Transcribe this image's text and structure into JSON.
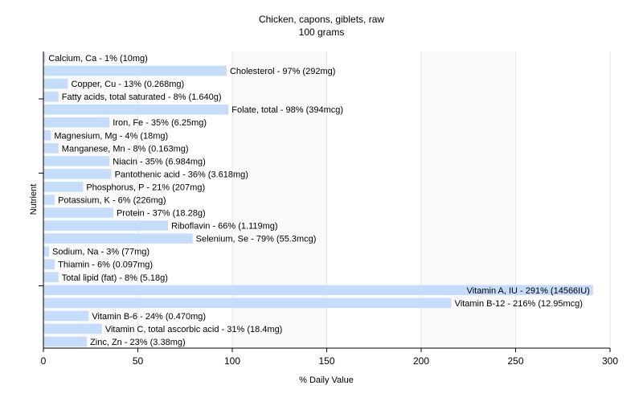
{
  "chart_data": {
    "type": "bar",
    "orientation": "horizontal",
    "title": "Chicken, capons, giblets, raw",
    "subtitle": "100 grams",
    "xlabel": "% Daily Value",
    "ylabel": "Nutrient",
    "xlim": [
      0,
      300
    ],
    "xticks": [
      0,
      50,
      100,
      150,
      200,
      250,
      300
    ],
    "grid": "vertical",
    "bar_color": "#c5dcfa",
    "bars": [
      {
        "name": "Calcium, Ca",
        "value": 1,
        "label": "Calcium, Ca - 1% (10mg)"
      },
      {
        "name": "Cholesterol",
        "value": 97,
        "label": "Cholesterol - 97% (292mg)"
      },
      {
        "name": "Copper, Cu",
        "value": 13,
        "label": "Copper, Cu - 13% (0.268mg)"
      },
      {
        "name": "Fatty acids, total saturated",
        "value": 8,
        "label": "Fatty acids, total saturated - 8% (1.640g)"
      },
      {
        "name": "Folate, total",
        "value": 98,
        "label": "Folate, total - 98% (394mcg)"
      },
      {
        "name": "Iron, Fe",
        "value": 35,
        "label": "Iron, Fe - 35% (6.25mg)"
      },
      {
        "name": "Magnesium, Mg",
        "value": 4,
        "label": "Magnesium, Mg - 4% (18mg)"
      },
      {
        "name": "Manganese, Mn",
        "value": 8,
        "label": "Manganese, Mn - 8% (0.163mg)"
      },
      {
        "name": "Niacin",
        "value": 35,
        "label": "Niacin - 35% (6.984mg)"
      },
      {
        "name": "Pantothenic acid",
        "value": 36,
        "label": "Pantothenic acid - 36% (3.618mg)"
      },
      {
        "name": "Phosphorus, P",
        "value": 21,
        "label": "Phosphorus, P - 21% (207mg)"
      },
      {
        "name": "Potassium, K",
        "value": 6,
        "label": "Potassium, K - 6% (226mg)"
      },
      {
        "name": "Protein",
        "value": 37,
        "label": "Protein - 37% (18.28g)"
      },
      {
        "name": "Riboflavin",
        "value": 66,
        "label": "Riboflavin - 66% (1.119mg)"
      },
      {
        "name": "Selenium, Se",
        "value": 79,
        "label": "Selenium, Se - 79% (55.3mcg)"
      },
      {
        "name": "Sodium, Na",
        "value": 3,
        "label": "Sodium, Na - 3% (77mg)"
      },
      {
        "name": "Thiamin",
        "value": 6,
        "label": "Thiamin - 6% (0.097mg)"
      },
      {
        "name": "Total lipid (fat)",
        "value": 8,
        "label": "Total lipid (fat) - 8% (5.18g)"
      },
      {
        "name": "Vitamin A, IU",
        "value": 291,
        "label": "Vitamin A, IU - 291% (14566IU)"
      },
      {
        "name": "Vitamin B-12",
        "value": 216,
        "label": "Vitamin B-12 - 216% (12.95mcg)"
      },
      {
        "name": "Vitamin B-6",
        "value": 24,
        "label": "Vitamin B-6 - 24% (0.470mg)"
      },
      {
        "name": "Vitamin C, total ascorbic acid",
        "value": 31,
        "label": "Vitamin C, total ascorbic acid - 31% (18.4mg)"
      },
      {
        "name": "Zinc, Zn",
        "value": 23,
        "label": "Zinc, Zn - 23% (3.38mg)"
      }
    ]
  }
}
